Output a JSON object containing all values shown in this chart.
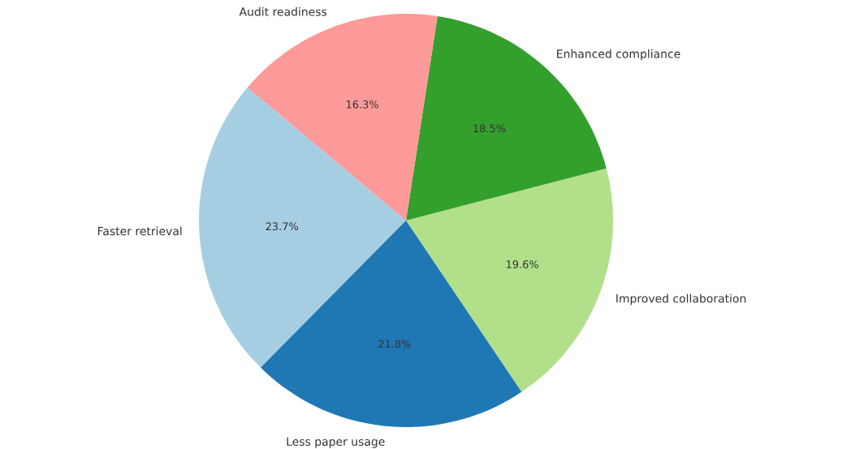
{
  "chart_data": {
    "type": "pie",
    "categories": [
      "Faster retrieval",
      "Less paper usage",
      "Improved collaboration",
      "Enhanced compliance",
      "Audit readiness"
    ],
    "values": [
      23.7,
      21.8,
      19.6,
      18.5,
      16.3
    ],
    "colors": [
      "#a6cee3",
      "#1f78b4",
      "#b2df8a",
      "#33a02c",
      "#fb9a99"
    ],
    "value_labels": [
      "23.7%",
      "21.8%",
      "19.6%",
      "18.5%",
      "16.3%"
    ]
  }
}
